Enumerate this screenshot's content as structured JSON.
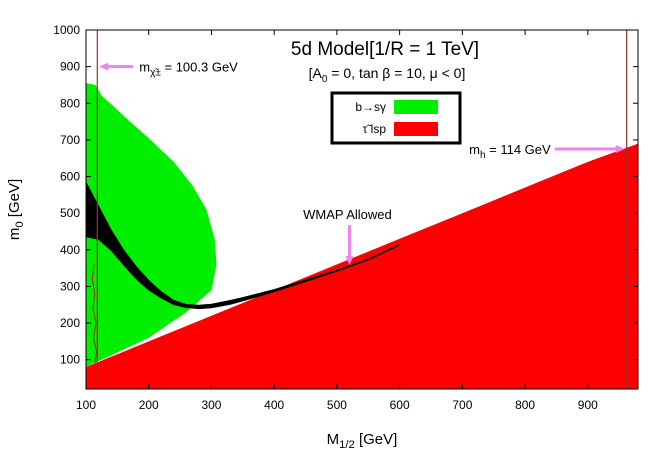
{
  "chart_data": {
    "type": "area",
    "title": "5d Model[1/R = 1 TeV]",
    "subtitle": "[A0 = 0, tan β = 10, μ < 0]",
    "xlabel": "M1/2 [GeV]",
    "ylabel": "m0 [GeV]",
    "xlim": [
      100,
      980
    ],
    "ylim": [
      20,
      1000
    ],
    "xticks": [
      100,
      200,
      300,
      400,
      500,
      600,
      700,
      800,
      900
    ],
    "yticks": [
      100,
      200,
      300,
      400,
      500,
      600,
      700,
      800,
      900,
      1000
    ],
    "legend": {
      "placement": "top-center",
      "entries": [
        {
          "label": "b→sγ",
          "color": "#00ee00"
        },
        {
          "label": "τ̃ lsp",
          "color": "#ff0000"
        }
      ]
    },
    "series": [
      {
        "name": "stau LSP excluded",
        "color": "#ff0000",
        "points": [
          [
            100,
            80
          ],
          [
            200,
            150
          ],
          [
            300,
            220
          ],
          [
            400,
            290
          ],
          [
            500,
            360
          ],
          [
            600,
            430
          ],
          [
            700,
            500
          ],
          [
            800,
            570
          ],
          [
            900,
            640
          ],
          [
            980,
            690
          ]
        ]
      },
      {
        "name": "b to s gamma excluded",
        "color": "#00ee00",
        "points": [
          [
            100,
            855
          ],
          [
            115,
            850
          ],
          [
            125,
            820
          ],
          [
            145,
            790
          ],
          [
            170,
            750
          ],
          [
            200,
            705
          ],
          [
            240,
            640
          ],
          [
            270,
            575
          ],
          [
            292,
            510
          ],
          [
            305,
            430
          ],
          [
            308,
            360
          ],
          [
            300,
            290
          ],
          [
            260,
            230
          ],
          [
            200,
            160
          ],
          [
            150,
            120
          ],
          [
            100,
            80
          ]
        ]
      },
      {
        "name": "WMAP allowed",
        "color": "#000000",
        "points_upper": [
          [
            100,
            585
          ],
          [
            120,
            520
          ],
          [
            140,
            455
          ],
          [
            160,
            400
          ],
          [
            180,
            355
          ],
          [
            200,
            317
          ],
          [
            220,
            286
          ],
          [
            240,
            262
          ],
          [
            260,
            251
          ],
          [
            280,
            249
          ],
          [
            300,
            252
          ],
          [
            330,
            262
          ],
          [
            350,
            270
          ],
          [
            400,
            292
          ],
          [
            450,
            318
          ],
          [
            500,
            345
          ],
          [
            550,
            375
          ],
          [
            600,
            415
          ]
        ],
        "points_lower": [
          [
            100,
            435
          ],
          [
            120,
            428
          ],
          [
            140,
            398
          ],
          [
            160,
            358
          ],
          [
            180,
            320
          ],
          [
            200,
            290
          ],
          [
            220,
            268
          ],
          [
            240,
            250
          ],
          [
            260,
            242
          ],
          [
            280,
            239
          ],
          [
            300,
            241
          ],
          [
            330,
            251
          ],
          [
            350,
            260
          ],
          [
            400,
            285
          ],
          [
            450,
            313
          ],
          [
            500,
            341
          ],
          [
            550,
            372
          ],
          [
            600,
            412
          ]
        ]
      }
    ],
    "constraint_lines": [
      {
        "name": "chargino mass limit",
        "x": 118,
        "color": "#a52a2a"
      },
      {
        "name": "higgs mass limit",
        "x": 962,
        "color": "#a52a2a"
      }
    ],
    "annotations": [
      {
        "label": "mχ̃± = 100.3 GeV",
        "arrow": "left",
        "x": 118,
        "y": 900
      },
      {
        "label": "mh = 114 GeV",
        "arrow": "right",
        "x": 962,
        "y": 675
      },
      {
        "label": "WMAP Allowed",
        "arrow": "down",
        "x": 520,
        "y": 350
      }
    ]
  }
}
